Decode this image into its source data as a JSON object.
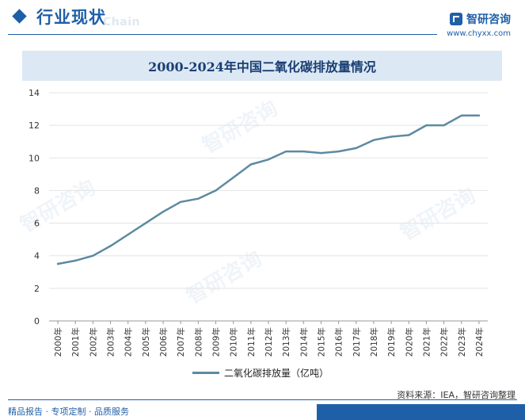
{
  "header": {
    "section_title": "行业现状",
    "section_ghost": "Chain",
    "brand_name": "智研咨询",
    "brand_url": "www.chyxx.com"
  },
  "chart_title": "2000-2024年中国二氧化碳排放量情况",
  "chart_data": {
    "type": "line",
    "title": "2000-2024年中国二氧化碳排放量情况",
    "xlabel": "",
    "ylabel": "",
    "x": [
      "2000年",
      "2001年",
      "2002年",
      "2003年",
      "2004年",
      "2005年",
      "2006年",
      "2007年",
      "2008年",
      "2009年",
      "2010年",
      "2011年",
      "2012年",
      "2013年",
      "2014年",
      "2015年",
      "2016年",
      "2017年",
      "2018年",
      "2019年",
      "2020年",
      "2021年",
      "2022年",
      "2023年",
      "2024年"
    ],
    "series": [
      {
        "name": "二氧化碳排放量（亿吨）",
        "values": [
          3.5,
          3.7,
          4.0,
          4.6,
          5.3,
          6.0,
          6.7,
          7.3,
          7.5,
          8.0,
          8.8,
          9.6,
          9.9,
          10.4,
          10.4,
          10.3,
          10.4,
          10.6,
          11.1,
          11.3,
          11.4,
          12.0,
          12.0,
          12.6,
          12.6
        ],
        "color": "#5d8aa1"
      }
    ],
    "ylim": [
      0,
      14
    ],
    "yticks": [
      0,
      2,
      4,
      6,
      8,
      10,
      12,
      14
    ],
    "grid": true,
    "legend_position": "bottom"
  },
  "footer": {
    "source": "资料来源：IEA，智研咨询整理",
    "slogan": "精品报告 · 专项定制 · 品质服务"
  },
  "watermark_text": "智研咨询"
}
